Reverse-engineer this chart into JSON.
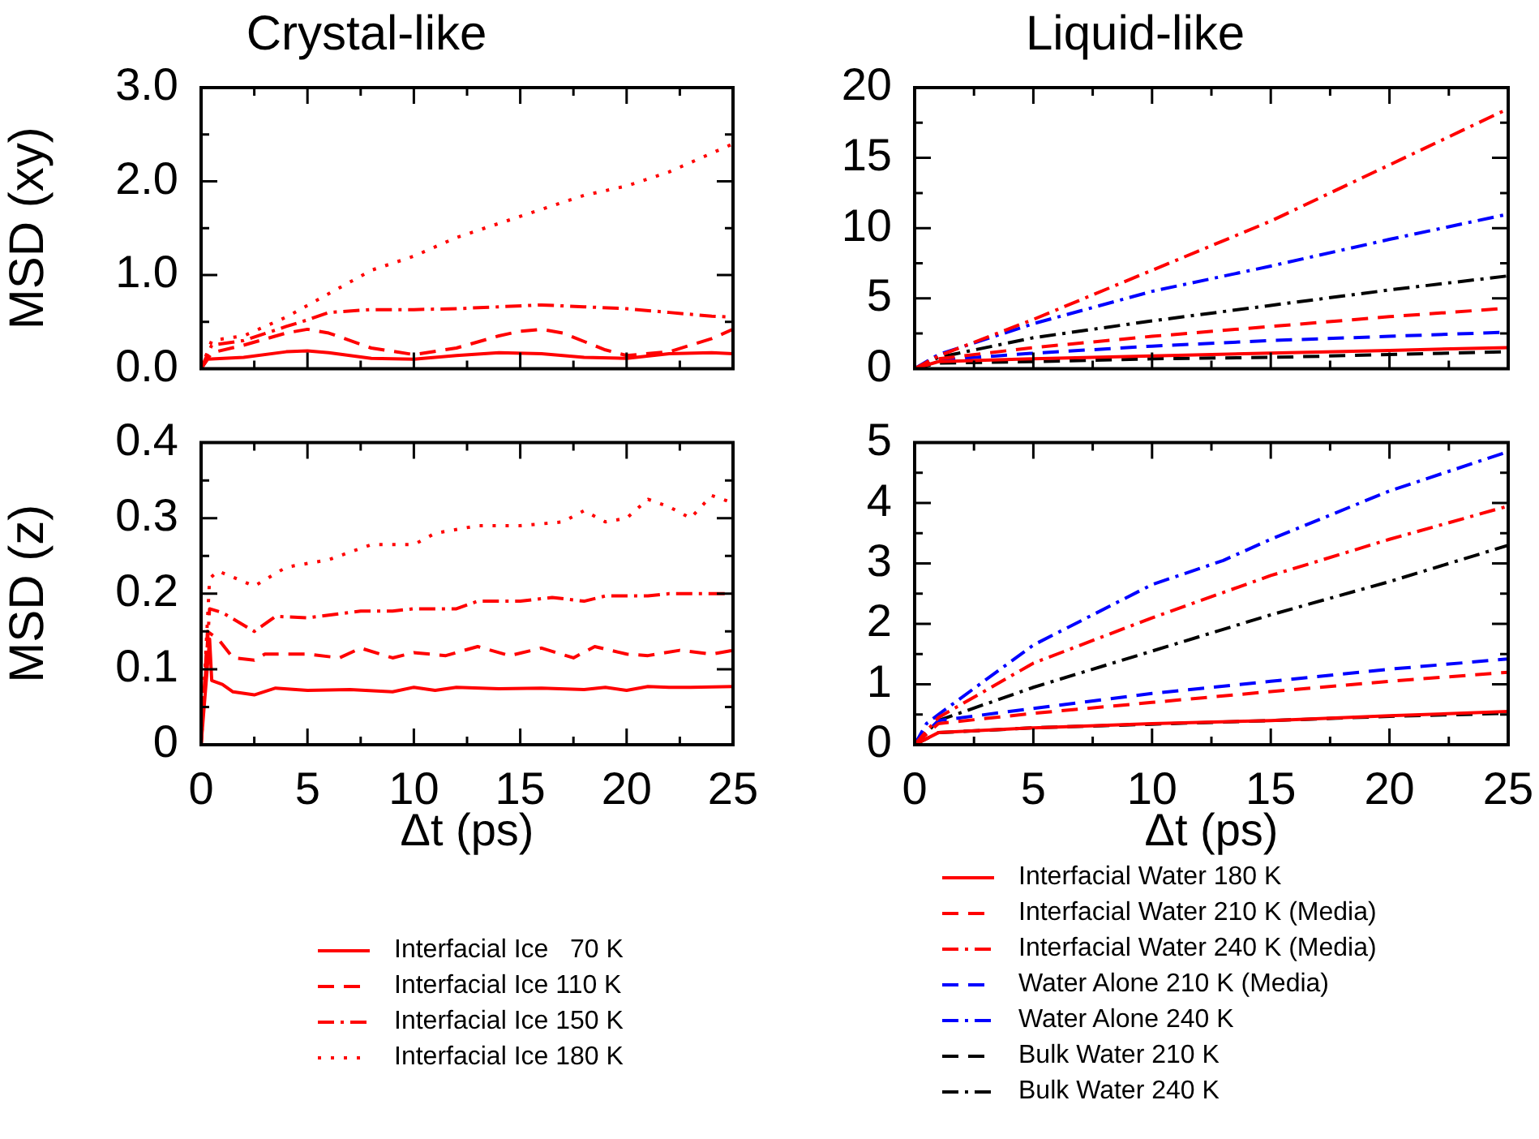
{
  "chart_data": [
    {
      "type": "line",
      "title": "Crystal-like",
      "ylabel": "MSD (xy)",
      "xlim": [
        0,
        25
      ],
      "ylim": [
        0,
        3
      ],
      "tick_labels": "y",
      "xticks": [
        0,
        {
          "value": 2.5,
          "label": null
        },
        5,
        {
          "value": 7.5,
          "label": null
        },
        10,
        {
          "value": 12.5,
          "label": null
        },
        15,
        {
          "value": 17.5,
          "label": null
        },
        20,
        {
          "value": 22.5,
          "label": null
        },
        25
      ],
      "yticks": [
        {
          "value": 0,
          "label": "0.0"
        },
        {
          "value": 0.5,
          "label": null
        },
        {
          "value": 1,
          "label": "1.0"
        },
        {
          "value": 1.5,
          "label": null
        },
        {
          "value": 2,
          "label": "2.0"
        },
        {
          "value": 2.5,
          "label": null
        },
        {
          "value": 3,
          "label": "3.0"
        }
      ],
      "series": [
        {
          "color": "#ff0000",
          "line_style": "solid",
          "x": [
            0,
            0.3,
            2,
            4,
            5,
            6,
            8,
            10,
            12,
            14,
            16,
            18,
            20,
            22,
            24,
            25
          ],
          "values": [
            0,
            0.1,
            0.12,
            0.18,
            0.19,
            0.17,
            0.11,
            0.1,
            0.14,
            0.17,
            0.16,
            0.12,
            0.11,
            0.16,
            0.17,
            0.16
          ]
        },
        {
          "color": "#ff0000",
          "line_style": "dashed",
          "x": [
            0,
            0.5,
            2,
            4,
            5,
            6,
            8,
            10,
            12,
            14,
            15,
            16,
            17,
            19,
            20,
            22,
            24,
            25
          ],
          "values": [
            0,
            0.17,
            0.25,
            0.38,
            0.42,
            0.38,
            0.22,
            0.15,
            0.22,
            0.35,
            0.4,
            0.42,
            0.38,
            0.2,
            0.14,
            0.18,
            0.32,
            0.42
          ]
        },
        {
          "color": "#ff0000",
          "line_style": "dashdot",
          "x": [
            0,
            0.5,
            2,
            4,
            5,
            6,
            8,
            10,
            12,
            14,
            16,
            18,
            20,
            22,
            24,
            25
          ],
          "values": [
            0,
            0.25,
            0.3,
            0.45,
            0.52,
            0.6,
            0.63,
            0.63,
            0.64,
            0.66,
            0.68,
            0.66,
            0.64,
            0.6,
            0.56,
            0.55
          ]
        },
        {
          "color": "#ff0000",
          "line_style": "dotted",
          "x": [
            0,
            0.5,
            2,
            4,
            6,
            8,
            10,
            12,
            14,
            16,
            18,
            20,
            22,
            24,
            25
          ],
          "values": [
            0,
            0.3,
            0.35,
            0.55,
            0.8,
            1.05,
            1.2,
            1.4,
            1.55,
            1.7,
            1.85,
            1.95,
            2.1,
            2.3,
            2.4
          ]
        }
      ]
    },
    {
      "type": "line",
      "title": "Liquid-like",
      "xlim": [
        0,
        25
      ],
      "ylim": [
        0,
        20
      ],
      "tick_labels": "y",
      "xticks": [
        0,
        {
          "value": 2.5,
          "label": null
        },
        5,
        {
          "value": 7.5,
          "label": null
        },
        10,
        {
          "value": 12.5,
          "label": null
        },
        15,
        {
          "value": 17.5,
          "label": null
        },
        20,
        {
          "value": 22.5,
          "label": null
        },
        25
      ],
      "yticks": [
        0,
        {
          "value": 2.5,
          "label": null
        },
        5,
        {
          "value": 7.5,
          "label": null
        },
        10,
        {
          "value": 12.5,
          "label": null
        },
        15,
        {
          "value": 17.5,
          "label": null
        },
        20
      ],
      "series": [
        {
          "color": "#ff0000",
          "line_style": "solid",
          "x": [
            0,
            1,
            5,
            10,
            15,
            20,
            25
          ],
          "values": [
            0,
            0.5,
            0.7,
            0.9,
            1.1,
            1.3,
            1.5
          ]
        },
        {
          "color": "#ff0000",
          "line_style": "dashed",
          "x": [
            0,
            1,
            5,
            10,
            15,
            20,
            25
          ],
          "values": [
            0,
            0.7,
            1.5,
            2.3,
            3,
            3.7,
            4.3
          ]
        },
        {
          "color": "#ff0000",
          "line_style": "dashdot",
          "x": [
            0,
            1,
            5,
            10,
            15,
            20,
            25
          ],
          "values": [
            0,
            0.9,
            3.5,
            7,
            10.5,
            14.5,
            18.5
          ]
        },
        {
          "color": "#0000ff",
          "line_style": "dashed",
          "x": [
            0,
            1,
            5,
            10,
            15,
            20,
            25
          ],
          "values": [
            0,
            0.6,
            1.1,
            1.6,
            2,
            2.3,
            2.6
          ]
        },
        {
          "color": "#0000ff",
          "line_style": "dashdot",
          "x": [
            0,
            1,
            5,
            10,
            15,
            20,
            25
          ],
          "values": [
            0,
            1,
            3.2,
            5.5,
            7.3,
            9.2,
            11
          ]
        },
        {
          "color": "#000000",
          "line_style": "dashed",
          "x": [
            0,
            1,
            5,
            10,
            15,
            20,
            25
          ],
          "values": [
            0,
            0.4,
            0.5,
            0.7,
            0.8,
            1,
            1.2
          ]
        },
        {
          "color": "#000000",
          "line_style": "dashdot",
          "x": [
            0,
            1,
            5,
            10,
            15,
            20,
            25
          ],
          "values": [
            0,
            0.8,
            2.2,
            3.4,
            4.5,
            5.6,
            6.6
          ]
        }
      ]
    },
    {
      "type": "line",
      "ylabel": "MSD (z)",
      "xlabel": "Δt (ps)",
      "xlim": [
        0,
        25
      ],
      "ylim": [
        0,
        0.4
      ],
      "legend": "bottom",
      "xticks": [
        0,
        {
          "value": 2.5,
          "label": null
        },
        5,
        {
          "value": 7.5,
          "label": null
        },
        10,
        {
          "value": 12.5,
          "label": null
        },
        15,
        {
          "value": 17.5,
          "label": null
        },
        20,
        {
          "value": 22.5,
          "label": null
        },
        25
      ],
      "yticks": [
        0,
        {
          "value": 0.05,
          "label": null
        },
        0.1,
        {
          "value": 0.15,
          "label": null
        },
        0.2,
        {
          "value": 0.25,
          "label": null
        },
        0.3,
        {
          "value": 0.35,
          "label": null
        },
        0.4
      ],
      "series": [
        {
          "name": "Interfacial Ice   70 K",
          "color": "#ff0000",
          "line_style": "solid",
          "x": [
            0,
            0.4,
            0.5,
            1,
            1.5,
            2.5,
            3.5,
            5,
            7,
            9,
            10,
            11,
            12,
            14,
            16,
            18,
            19,
            20,
            21,
            22,
            23,
            25
          ],
          "values": [
            0,
            0.14,
            0.085,
            0.08,
            0.07,
            0.066,
            0.075,
            0.072,
            0.073,
            0.07,
            0.076,
            0.072,
            0.076,
            0.074,
            0.075,
            0.073,
            0.076,
            0.072,
            0.077,
            0.076,
            0.076,
            0.077
          ]
        },
        {
          "name": "Interfacial Ice 110 K",
          "color": "#ff0000",
          "line_style": "dashed",
          "x": [
            0,
            0.3,
            0.8,
            1.5,
            2.5,
            3,
            5,
            6.5,
            7.5,
            9,
            10,
            11.5,
            13,
            14.5,
            16,
            17.5,
            18.5,
            20,
            21,
            22.5,
            24,
            25
          ],
          "values": [
            0,
            0.15,
            0.14,
            0.115,
            0.112,
            0.12,
            0.12,
            0.115,
            0.128,
            0.115,
            0.122,
            0.118,
            0.13,
            0.118,
            0.128,
            0.115,
            0.13,
            0.12,
            0.118,
            0.125,
            0.12,
            0.125
          ]
        },
        {
          "name": "Interfacial Ice 150 K",
          "color": "#ff0000",
          "line_style": "dashdot",
          "x": [
            0,
            0.4,
            1,
            2.5,
            3.5,
            5,
            7.5,
            9,
            10,
            12,
            13,
            15,
            16.5,
            18,
            19,
            21,
            22,
            25
          ],
          "values": [
            0,
            0.18,
            0.175,
            0.15,
            0.17,
            0.168,
            0.177,
            0.177,
            0.18,
            0.18,
            0.19,
            0.19,
            0.195,
            0.19,
            0.197,
            0.197,
            0.2,
            0.2
          ]
        },
        {
          "name": "Interfacial Ice 180 K",
          "color": "#ff0000",
          "line_style": "dotted",
          "x": [
            0,
            0.4,
            0.8,
            2.5,
            4,
            6,
            8,
            10,
            11,
            13,
            15,
            17,
            18,
            19,
            20,
            21,
            22,
            23,
            24,
            25
          ],
          "values": [
            0,
            0.22,
            0.23,
            0.21,
            0.235,
            0.245,
            0.265,
            0.265,
            0.28,
            0.29,
            0.29,
            0.295,
            0.31,
            0.295,
            0.3,
            0.325,
            0.315,
            0.3,
            0.33,
            0.32
          ]
        }
      ]
    },
    {
      "type": "line",
      "xlabel": "Δt (ps)",
      "xlim": [
        0,
        25
      ],
      "ylim": [
        0,
        5
      ],
      "legend": "bottom",
      "xticks": [
        0,
        {
          "value": 2.5,
          "label": null
        },
        5,
        {
          "value": 7.5,
          "label": null
        },
        10,
        {
          "value": 12.5,
          "label": null
        },
        15,
        {
          "value": 17.5,
          "label": null
        },
        20,
        {
          "value": 22.5,
          "label": null
        },
        25
      ],
      "yticks": [
        0,
        {
          "value": 0.5,
          "label": null
        },
        1,
        {
          "value": 1.5,
          "label": null
        },
        2,
        {
          "value": 2.5,
          "label": null
        },
        3,
        {
          "value": 3.5,
          "label": null
        },
        4,
        {
          "value": 4.5,
          "label": null
        },
        5
      ],
      "series": [
        {
          "name": "Interfacial Water 180 K",
          "color": "#ff0000",
          "line_style": "solid",
          "x": [
            0,
            1,
            5,
            10,
            15,
            20,
            25
          ],
          "values": [
            0,
            0.2,
            0.28,
            0.35,
            0.4,
            0.48,
            0.55
          ]
        },
        {
          "name": "Interfacial Water 210 K (Media)",
          "color": "#ff0000",
          "line_style": "dashed",
          "x": [
            0,
            1,
            5,
            10,
            15,
            20,
            25
          ],
          "values": [
            0,
            0.35,
            0.52,
            0.7,
            0.88,
            1.05,
            1.2
          ]
        },
        {
          "name": "Interfacial Water 240 K (Media)",
          "color": "#ff0000",
          "line_style": "dashdot",
          "x": [
            0,
            1,
            5,
            10,
            15,
            20,
            25
          ],
          "values": [
            0,
            0.45,
            1.35,
            2.1,
            2.8,
            3.4,
            3.95
          ]
        },
        {
          "name": "Water Alone 210 K (Media)",
          "color": "#0000ff",
          "line_style": "dashed",
          "x": [
            0,
            1,
            5,
            10,
            15,
            20,
            25
          ],
          "values": [
            0,
            0.4,
            0.6,
            0.85,
            1.05,
            1.25,
            1.42
          ]
        },
        {
          "name": "Water Alone 240 K",
          "color": "#0000ff",
          "line_style": "dashdot",
          "x": [
            0,
            0.5,
            1,
            5,
            10,
            13,
            15,
            20,
            25
          ],
          "values": [
            0,
            0.35,
            0.5,
            1.65,
            2.65,
            3.05,
            3.4,
            4.2,
            4.85
          ]
        },
        {
          "name": "Bulk Water 210 K",
          "color": "#000000",
          "line_style": "dashed",
          "x": [
            0,
            1,
            5,
            10,
            15,
            20,
            25
          ],
          "values": [
            0,
            0.2,
            0.28,
            0.34,
            0.4,
            0.47,
            0.52
          ]
        },
        {
          "name": "Bulk Water 240 K",
          "color": "#000000",
          "line_style": "dashdot",
          "x": [
            0,
            1,
            5,
            10,
            15,
            20,
            25
          ],
          "values": [
            0,
            0.4,
            0.95,
            1.55,
            2.15,
            2.7,
            3.3
          ]
        }
      ]
    }
  ]
}
